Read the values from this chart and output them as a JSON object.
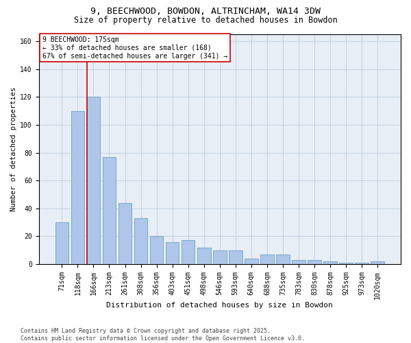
{
  "title1": "9, BEECHWOOD, BOWDON, ALTRINCHAM, WA14 3DW",
  "title2": "Size of property relative to detached houses in Bowdon",
  "xlabel": "Distribution of detached houses by size in Bowdon",
  "ylabel": "Number of detached properties",
  "categories": [
    "71sqm",
    "118sqm",
    "166sqm",
    "213sqm",
    "261sqm",
    "308sqm",
    "356sqm",
    "403sqm",
    "451sqm",
    "498sqm",
    "546sqm",
    "593sqm",
    "640sqm",
    "688sqm",
    "735sqm",
    "783sqm",
    "830sqm",
    "878sqm",
    "925sqm",
    "973sqm",
    "1020sqm"
  ],
  "values": [
    30,
    110,
    120,
    77,
    44,
    33,
    20,
    16,
    17,
    12,
    10,
    10,
    4,
    7,
    7,
    3,
    3,
    2,
    1,
    1,
    2
  ],
  "bar_color": "#aec6e8",
  "bar_edge_color": "#6a9fc8",
  "vline_color": "#cc0000",
  "vline_x_index": 1.58,
  "annotation_text": "9 BEECHWOOD: 175sqm\n← 33% of detached houses are smaller (168)\n67% of semi-detached houses are larger (341) →",
  "annotation_box_color": "#ffffff",
  "annotation_box_edgecolor": "#cc0000",
  "ylim": [
    0,
    165
  ],
  "yticks": [
    0,
    20,
    40,
    60,
    80,
    100,
    120,
    140,
    160
  ],
  "background_color": "#e8eef5",
  "footer": "Contains HM Land Registry data © Crown copyright and database right 2025.\nContains public sector information licensed under the Open Government Licence v3.0.",
  "title1_fontsize": 9.5,
  "title2_fontsize": 8.5,
  "xlabel_fontsize": 8,
  "ylabel_fontsize": 7.5,
  "tick_fontsize": 7,
  "annotation_fontsize": 7,
  "footer_fontsize": 6
}
